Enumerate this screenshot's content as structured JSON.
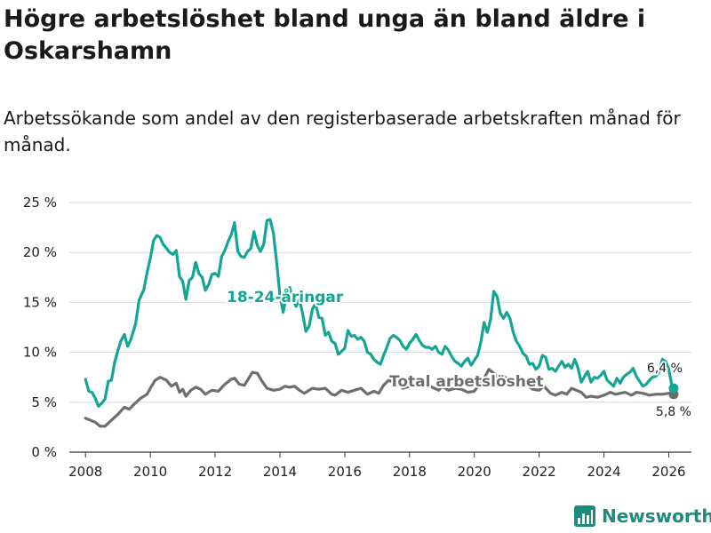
{
  "title": "Högre arbetslöshet bland unga än bland äldre i Oskarshamn",
  "subtitle": "Arbetssökande som andel av den registerbaserade arbetskraften månad för månad.",
  "brand": {
    "name": "Newsworthy",
    "color": "#1d8a7e"
  },
  "chart_data": {
    "type": "line",
    "title": "Högre arbetslöshet bland unga än bland äldre i Oskarshamn",
    "xlabel": "",
    "ylabel": "",
    "xlim": [
      2007.5,
      2026.7
    ],
    "ylim": [
      0,
      25
    ],
    "y_ticks": [
      0,
      5,
      10,
      15,
      20,
      25
    ],
    "y_tick_labels": [
      "0 %",
      "5 %",
      "10 %",
      "15 %",
      "20 %",
      "25 %"
    ],
    "x_ticks": [
      2008,
      2010,
      2012,
      2014,
      2016,
      2018,
      2020,
      2022,
      2024,
      2026
    ],
    "x_tick_labels": [
      "2008",
      "2010",
      "2012",
      "2014",
      "2016",
      "2018",
      "2020",
      "2022",
      "2024",
      "2026"
    ],
    "grid": true,
    "series": [
      {
        "name": "Total arbetslöshet",
        "label": "Total arbetslöshet",
        "color": "#6e6e70",
        "end_value_label": "5,8 %",
        "points": [
          [
            2008.0,
            3.4
          ],
          [
            2008.3,
            3.0
          ],
          [
            2008.45,
            2.6
          ],
          [
            2008.6,
            2.6
          ],
          [
            2008.8,
            3.2
          ],
          [
            2009.0,
            3.8
          ],
          [
            2009.2,
            4.5
          ],
          [
            2009.35,
            4.3
          ],
          [
            2009.5,
            4.8
          ],
          [
            2009.7,
            5.4
          ],
          [
            2009.9,
            5.8
          ],
          [
            2010.0,
            6.4
          ],
          [
            2010.15,
            7.2
          ],
          [
            2010.3,
            7.5
          ],
          [
            2010.5,
            7.2
          ],
          [
            2010.65,
            6.6
          ],
          [
            2010.8,
            6.9
          ],
          [
            2010.9,
            6.0
          ],
          [
            2011.0,
            6.3
          ],
          [
            2011.1,
            5.6
          ],
          [
            2011.25,
            6.2
          ],
          [
            2011.4,
            6.5
          ],
          [
            2011.55,
            6.3
          ],
          [
            2011.7,
            5.8
          ],
          [
            2011.9,
            6.2
          ],
          [
            2012.1,
            6.1
          ],
          [
            2012.3,
            6.8
          ],
          [
            2012.5,
            7.3
          ],
          [
            2012.6,
            7.4
          ],
          [
            2012.75,
            6.8
          ],
          [
            2012.9,
            6.7
          ],
          [
            2013.0,
            7.2
          ],
          [
            2013.15,
            8.0
          ],
          [
            2013.3,
            7.9
          ],
          [
            2013.45,
            7.1
          ],
          [
            2013.6,
            6.4
          ],
          [
            2013.8,
            6.2
          ],
          [
            2014.0,
            6.3
          ],
          [
            2014.15,
            6.6
          ],
          [
            2014.3,
            6.5
          ],
          [
            2014.45,
            6.6
          ],
          [
            2014.6,
            6.2
          ],
          [
            2014.75,
            5.9
          ],
          [
            2015.0,
            6.4
          ],
          [
            2015.2,
            6.3
          ],
          [
            2015.4,
            6.4
          ],
          [
            2015.6,
            5.8
          ],
          [
            2015.7,
            5.7
          ],
          [
            2015.9,
            6.2
          ],
          [
            2016.1,
            6.0
          ],
          [
            2016.3,
            6.2
          ],
          [
            2016.5,
            6.4
          ],
          [
            2016.7,
            5.8
          ],
          [
            2016.9,
            6.1
          ],
          [
            2017.05,
            5.9
          ],
          [
            2017.2,
            6.7
          ],
          [
            2017.35,
            7.2
          ],
          [
            2017.5,
            7.0
          ],
          [
            2017.65,
            6.8
          ],
          [
            2017.8,
            6.4
          ],
          [
            2018.0,
            6.6
          ],
          [
            2018.15,
            7.1
          ],
          [
            2018.3,
            7.0
          ],
          [
            2018.5,
            6.8
          ],
          [
            2018.7,
            6.5
          ],
          [
            2018.9,
            6.2
          ],
          [
            2019.0,
            6.6
          ],
          [
            2019.2,
            6.2
          ],
          [
            2019.4,
            6.4
          ],
          [
            2019.6,
            6.3
          ],
          [
            2019.8,
            6.0
          ],
          [
            2020.0,
            6.1
          ],
          [
            2020.3,
            7.4
          ],
          [
            2020.45,
            8.3
          ],
          [
            2020.6,
            7.9
          ],
          [
            2020.75,
            7.4
          ],
          [
            2020.9,
            7.6
          ],
          [
            2021.05,
            7.3
          ],
          [
            2021.2,
            7.0
          ],
          [
            2021.4,
            6.6
          ],
          [
            2021.6,
            6.8
          ],
          [
            2021.8,
            6.3
          ],
          [
            2022.0,
            6.2
          ],
          [
            2022.15,
            6.6
          ],
          [
            2022.35,
            5.9
          ],
          [
            2022.5,
            5.7
          ],
          [
            2022.7,
            6.0
          ],
          [
            2022.85,
            5.8
          ],
          [
            2023.0,
            6.4
          ],
          [
            2023.15,
            6.2
          ],
          [
            2023.3,
            6.0
          ],
          [
            2023.45,
            5.5
          ],
          [
            2023.6,
            5.6
          ],
          [
            2023.8,
            5.5
          ],
          [
            2024.0,
            5.7
          ],
          [
            2024.2,
            6.0
          ],
          [
            2024.35,
            5.8
          ],
          [
            2024.5,
            5.9
          ],
          [
            2024.65,
            6.0
          ],
          [
            2024.85,
            5.7
          ],
          [
            2025.0,
            6.0
          ],
          [
            2025.2,
            5.9
          ],
          [
            2025.4,
            5.7
          ],
          [
            2025.6,
            5.8
          ],
          [
            2025.8,
            5.8
          ],
          [
            2026.0,
            5.9
          ],
          [
            2026.15,
            5.8
          ]
        ]
      },
      {
        "name": "18-24-åringar",
        "label": "18-24-åringar",
        "color": "#14a595",
        "end_value_label": "6,4 %",
        "points": [
          [
            2008.0,
            7.3
          ],
          [
            2008.1,
            6.1
          ],
          [
            2008.2,
            6.0
          ],
          [
            2008.3,
            5.4
          ],
          [
            2008.4,
            4.6
          ],
          [
            2008.5,
            4.9
          ],
          [
            2008.6,
            5.3
          ],
          [
            2008.7,
            7.1
          ],
          [
            2008.8,
            7.2
          ],
          [
            2008.9,
            9.0
          ],
          [
            2009.0,
            10.2
          ],
          [
            2009.1,
            11.2
          ],
          [
            2009.2,
            11.8
          ],
          [
            2009.3,
            10.6
          ],
          [
            2009.4,
            11.3
          ],
          [
            2009.55,
            12.9
          ],
          [
            2009.65,
            15.2
          ],
          [
            2009.8,
            16.3
          ],
          [
            2009.9,
            18.0
          ],
          [
            2010.0,
            19.4
          ],
          [
            2010.1,
            21.2
          ],
          [
            2010.2,
            21.7
          ],
          [
            2010.3,
            21.5
          ],
          [
            2010.4,
            20.8
          ],
          [
            2010.5,
            20.4
          ],
          [
            2010.6,
            20.0
          ],
          [
            2010.7,
            19.8
          ],
          [
            2010.8,
            20.2
          ],
          [
            2010.9,
            17.6
          ],
          [
            2011.0,
            17.1
          ],
          [
            2011.1,
            15.3
          ],
          [
            2011.2,
            17.2
          ],
          [
            2011.3,
            17.5
          ],
          [
            2011.4,
            19.0
          ],
          [
            2011.5,
            17.9
          ],
          [
            2011.6,
            17.5
          ],
          [
            2011.7,
            16.2
          ],
          [
            2011.8,
            16.8
          ],
          [
            2011.9,
            17.8
          ],
          [
            2012.0,
            17.9
          ],
          [
            2012.1,
            17.6
          ],
          [
            2012.2,
            19.6
          ],
          [
            2012.3,
            20.2
          ],
          [
            2012.4,
            21.1
          ],
          [
            2012.5,
            21.8
          ],
          [
            2012.6,
            23.0
          ],
          [
            2012.7,
            20.1
          ],
          [
            2012.8,
            19.6
          ],
          [
            2012.9,
            19.5
          ],
          [
            2013.0,
            20.1
          ],
          [
            2013.1,
            20.4
          ],
          [
            2013.2,
            22.1
          ],
          [
            2013.3,
            20.7
          ],
          [
            2013.4,
            20.1
          ],
          [
            2013.5,
            20.8
          ],
          [
            2013.6,
            23.2
          ],
          [
            2013.7,
            23.3
          ],
          [
            2013.8,
            21.9
          ],
          [
            2013.9,
            19.0
          ],
          [
            2014.0,
            15.7
          ],
          [
            2014.1,
            14.0
          ],
          [
            2014.2,
            15.6
          ],
          [
            2014.3,
            16.5
          ],
          [
            2014.4,
            15.3
          ],
          [
            2014.5,
            14.6
          ],
          [
            2014.6,
            15.3
          ],
          [
            2014.7,
            13.9
          ],
          [
            2014.8,
            12.1
          ],
          [
            2014.9,
            12.6
          ],
          [
            2015.0,
            14.3
          ],
          [
            2015.1,
            14.9
          ],
          [
            2015.2,
            13.5
          ],
          [
            2015.3,
            13.4
          ],
          [
            2015.4,
            11.7
          ],
          [
            2015.5,
            12.0
          ],
          [
            2015.6,
            11.1
          ],
          [
            2015.7,
            10.9
          ],
          [
            2015.8,
            9.8
          ],
          [
            2015.9,
            10.1
          ],
          [
            2016.0,
            10.4
          ],
          [
            2016.1,
            12.2
          ],
          [
            2016.2,
            11.6
          ],
          [
            2016.3,
            11.7
          ],
          [
            2016.4,
            11.3
          ],
          [
            2016.5,
            11.5
          ],
          [
            2016.6,
            11.1
          ],
          [
            2016.7,
            10.0
          ],
          [
            2016.8,
            9.8
          ],
          [
            2016.9,
            9.3
          ],
          [
            2017.0,
            9.0
          ],
          [
            2017.1,
            8.8
          ],
          [
            2017.2,
            9.7
          ],
          [
            2017.3,
            10.5
          ],
          [
            2017.4,
            11.4
          ],
          [
            2017.5,
            11.7
          ],
          [
            2017.6,
            11.5
          ],
          [
            2017.7,
            11.2
          ],
          [
            2017.8,
            10.6
          ],
          [
            2017.9,
            10.3
          ],
          [
            2018.0,
            10.9
          ],
          [
            2018.1,
            11.3
          ],
          [
            2018.2,
            11.8
          ],
          [
            2018.3,
            11.2
          ],
          [
            2018.4,
            10.7
          ],
          [
            2018.5,
            10.5
          ],
          [
            2018.6,
            10.5
          ],
          [
            2018.7,
            10.3
          ],
          [
            2018.8,
            10.6
          ],
          [
            2018.9,
            10.0
          ],
          [
            2019.0,
            9.8
          ],
          [
            2019.1,
            10.6
          ],
          [
            2019.2,
            10.2
          ],
          [
            2019.3,
            9.6
          ],
          [
            2019.4,
            9.1
          ],
          [
            2019.5,
            8.9
          ],
          [
            2019.6,
            8.6
          ],
          [
            2019.7,
            9.1
          ],
          [
            2019.8,
            9.4
          ],
          [
            2019.9,
            8.7
          ],
          [
            2020.0,
            9.2
          ],
          [
            2020.1,
            9.7
          ],
          [
            2020.2,
            11.0
          ],
          [
            2020.3,
            13.0
          ],
          [
            2020.4,
            12.0
          ],
          [
            2020.5,
            13.3
          ],
          [
            2020.6,
            16.1
          ],
          [
            2020.7,
            15.6
          ],
          [
            2020.8,
            13.9
          ],
          [
            2020.9,
            13.4
          ],
          [
            2021.0,
            14.0
          ],
          [
            2021.1,
            13.4
          ],
          [
            2021.2,
            12.0
          ],
          [
            2021.3,
            11.1
          ],
          [
            2021.4,
            10.6
          ],
          [
            2021.5,
            9.9
          ],
          [
            2021.6,
            9.6
          ],
          [
            2021.7,
            8.8
          ],
          [
            2021.8,
            8.9
          ],
          [
            2021.9,
            8.3
          ],
          [
            2022.0,
            8.6
          ],
          [
            2022.1,
            9.7
          ],
          [
            2022.2,
            9.5
          ],
          [
            2022.3,
            8.3
          ],
          [
            2022.4,
            8.4
          ],
          [
            2022.5,
            8.1
          ],
          [
            2022.6,
            8.6
          ],
          [
            2022.7,
            9.1
          ],
          [
            2022.8,
            8.5
          ],
          [
            2022.9,
            8.8
          ],
          [
            2023.0,
            8.4
          ],
          [
            2023.1,
            9.3
          ],
          [
            2023.2,
            8.4
          ],
          [
            2023.3,
            7.0
          ],
          [
            2023.4,
            7.6
          ],
          [
            2023.5,
            8.1
          ],
          [
            2023.6,
            7.0
          ],
          [
            2023.7,
            7.5
          ],
          [
            2023.8,
            7.4
          ],
          [
            2023.9,
            7.7
          ],
          [
            2024.0,
            8.1
          ],
          [
            2024.1,
            7.2
          ],
          [
            2024.2,
            6.9
          ],
          [
            2024.3,
            6.6
          ],
          [
            2024.4,
            7.4
          ],
          [
            2024.5,
            6.9
          ],
          [
            2024.6,
            7.5
          ],
          [
            2024.7,
            7.8
          ],
          [
            2024.8,
            8.0
          ],
          [
            2024.9,
            8.4
          ],
          [
            2025.0,
            7.6
          ],
          [
            2025.1,
            7.1
          ],
          [
            2025.2,
            6.6
          ],
          [
            2025.3,
            6.8
          ],
          [
            2025.4,
            7.2
          ],
          [
            2025.5,
            7.5
          ],
          [
            2025.6,
            7.6
          ],
          [
            2025.7,
            8.0
          ],
          [
            2025.8,
            9.3
          ],
          [
            2025.9,
            9.1
          ],
          [
            2026.0,
            8.3
          ],
          [
            2026.1,
            6.6
          ],
          [
            2026.15,
            6.4
          ]
        ]
      }
    ]
  }
}
